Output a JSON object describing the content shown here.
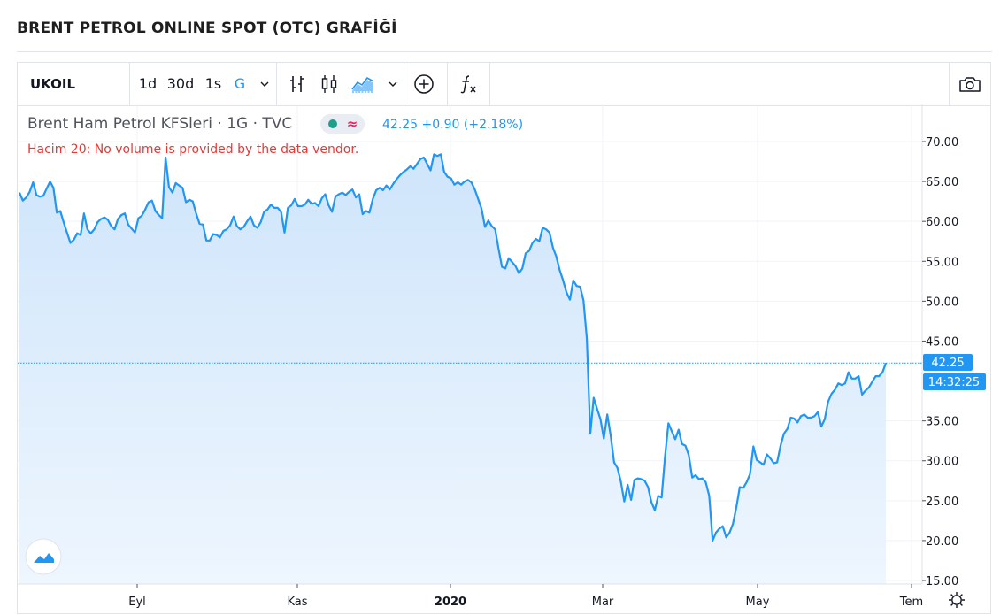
{
  "page": {
    "title": "BRENT PETROL ONLINE SPOT (OTC) GRAFİĞİ"
  },
  "toolbar": {
    "symbol": "UKOIL",
    "intervals": [
      "1d",
      "30d",
      "1s",
      "G"
    ],
    "icons": [
      "bar-style-icon",
      "candle-style-icon",
      "area-style-icon",
      "compare-add-icon",
      "indicators-fx-icon",
      "snapshot-camera-icon"
    ]
  },
  "legend": {
    "name": "Brent Ham Petrol KFSleri",
    "separator1": "·",
    "interval": "1G",
    "separator2": "·",
    "source": "TVC",
    "last": "42.25",
    "change": "+0.90",
    "change_pct": "(+2.18%)",
    "volume_note": "Hacim 20: No volume is provided by the data vendor."
  },
  "price_axis": {
    "ticks": [
      "70.00",
      "65.00",
      "60.00",
      "55.00",
      "50.00",
      "45.00",
      "35.00",
      "30.00",
      "25.00",
      "20.00",
      "15.00"
    ],
    "last_price_label": "42.25",
    "countdown_label": "14:32:25"
  },
  "time_axis": {
    "ticks": [
      {
        "label": "Eyl",
        "bold": false
      },
      {
        "label": "Kas",
        "bold": false
      },
      {
        "label": "2020",
        "bold": true
      },
      {
        "label": "Mar",
        "bold": false
      },
      {
        "label": "May",
        "bold": false
      },
      {
        "label": "Tem",
        "bold": false
      }
    ]
  },
  "colors": {
    "line": "#2196f3",
    "area_top": "#cfe5fb",
    "area_bottom": "#eef6fe",
    "price_label_bg": "#2196f3",
    "volume_note": "#e53935"
  },
  "chart_data": {
    "type": "area",
    "title": "Brent Ham Petrol KFSleri · 1G · TVC",
    "ylim": [
      15,
      73
    ],
    "y_ticks": [
      15,
      20,
      25,
      30,
      35,
      45,
      50,
      55,
      60,
      65,
      70
    ],
    "last_value": 42.25,
    "x_tick_labels": [
      "Eyl",
      "Kas",
      "2020",
      "Mar",
      "May",
      "Tem"
    ],
    "series": [
      {
        "values": [
          63.6,
          62.6,
          63.0,
          63.7,
          64.9,
          63.3,
          63.1,
          63.2,
          64.1,
          65.0,
          64.2,
          61.1,
          61.3,
          59.9,
          58.6,
          57.3,
          57.7,
          58.5,
          58.3,
          61.0,
          59.0,
          58.5,
          59.0,
          59.9,
          60.3,
          60.5,
          60.2,
          59.4,
          59.0,
          60.3,
          60.8,
          61.0,
          59.6,
          59.1,
          58.6,
          60.4,
          60.7,
          61.5,
          62.4,
          62.6,
          61.3,
          60.8,
          60.4,
          68.0,
          64.3,
          63.6,
          64.8,
          64.5,
          64.2,
          62.4,
          62.7,
          62.5,
          61.0,
          59.7,
          59.6,
          57.6,
          57.6,
          58.4,
          58.3,
          58.0,
          58.8,
          59.0,
          59.5,
          60.6,
          59.4,
          59.0,
          59.3,
          60.0,
          60.6,
          59.5,
          59.2,
          59.9,
          61.2,
          61.5,
          62.1,
          61.7,
          61.7,
          61.2,
          58.6,
          61.7,
          62.0,
          62.8,
          61.9,
          61.9,
          62.1,
          62.7,
          62.2,
          62.3,
          61.9,
          62.9,
          63.4,
          62.0,
          61.2,
          63.1,
          63.4,
          63.6,
          63.3,
          63.7,
          64.0,
          63.0,
          63.4,
          60.9,
          61.3,
          61.1,
          62.8,
          63.9,
          64.2,
          63.9,
          64.5,
          64.0,
          64.7,
          65.3,
          65.8,
          66.2,
          66.5,
          66.9,
          66.6,
          67.2,
          67.8,
          68.0,
          67.2,
          66.4,
          68.4,
          68.2,
          68.4,
          66.2,
          65.6,
          65.4,
          64.6,
          64.9,
          64.6,
          65.0,
          65.2,
          64.9,
          64.0,
          62.8,
          61.6,
          59.3,
          60.1,
          59.4,
          59.0,
          56.6,
          54.3,
          54.1,
          55.4,
          54.9,
          54.4,
          53.5,
          54.1,
          56.0,
          56.3,
          57.3,
          57.8,
          57.5,
          59.2,
          59.0,
          58.6,
          56.7,
          55.6,
          53.9,
          52.6,
          51.1,
          50.2,
          52.6,
          51.9,
          51.8,
          50.1,
          45.3,
          33.4,
          37.9,
          36.5,
          35.2,
          32.8,
          35.8,
          33.2,
          29.8,
          29.1,
          27.4,
          24.9,
          27.0,
          25.1,
          27.6,
          27.8,
          27.7,
          27.5,
          26.7,
          24.8,
          23.8,
          25.6,
          25.4,
          30.6,
          34.7,
          33.7,
          32.7,
          33.9,
          32.1,
          31.9,
          30.7,
          27.9,
          28.2,
          27.7,
          27.8,
          27.3,
          25.6,
          20.0,
          21.0,
          21.5,
          21.8,
          20.4,
          21.0,
          22.1,
          24.2,
          26.7,
          26.6,
          27.3,
          28.3,
          31.8,
          30.1,
          29.8,
          29.5,
          30.8,
          30.3,
          29.7,
          29.8,
          31.9,
          33.4,
          34.0,
          35.4,
          35.3,
          34.8,
          35.6,
          35.8,
          35.4,
          35.4,
          35.6,
          36.1,
          34.3,
          35.2,
          37.4,
          38.4,
          38.9,
          39.7,
          39.5,
          39.7,
          41.1,
          40.3,
          40.3,
          40.6,
          38.3,
          38.8,
          39.2,
          39.9,
          40.6,
          40.6,
          41.1,
          42.25
        ]
      }
    ]
  }
}
